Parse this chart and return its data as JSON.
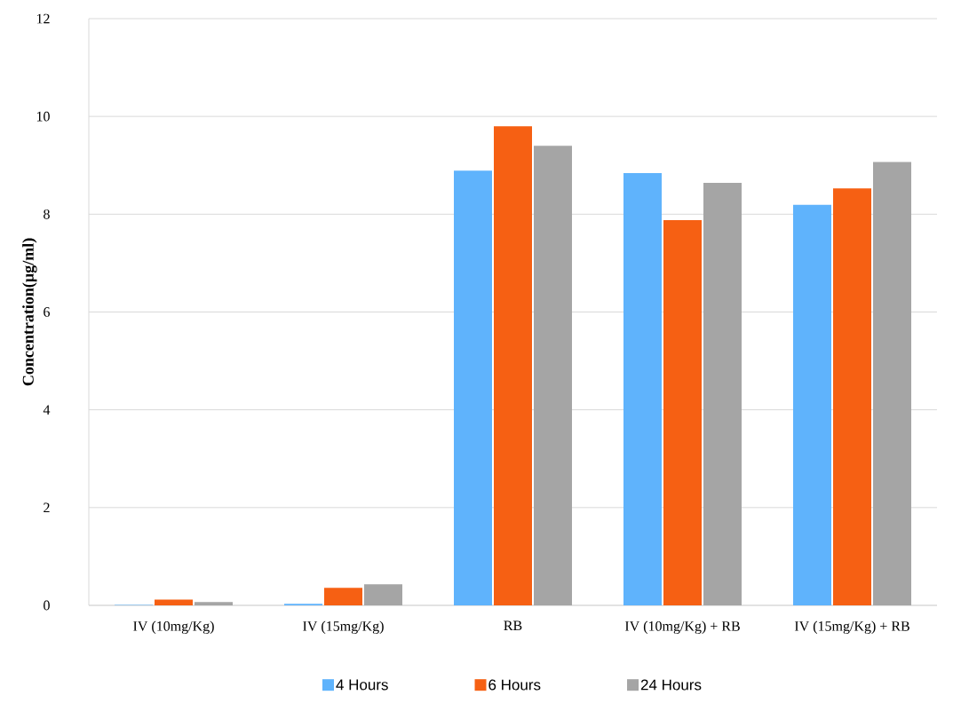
{
  "chart_data": {
    "type": "bar",
    "ylabel": "Concentration(µg/ml)",
    "categories": [
      "IV (10mg/Kg)",
      "IV (15mg/Kg)",
      "RB",
      "IV (10mg/Kg) + RB",
      "IV (15mg/Kg) + RB"
    ],
    "series": [
      {
        "name": "4 Hours",
        "color": "#5fb3fc",
        "values": [
          0.01,
          0.03,
          8.89,
          8.84,
          8.19
        ]
      },
      {
        "name": "6 Hours",
        "color": "#f66013",
        "values": [
          0.12,
          0.36,
          9.8,
          7.88,
          8.53
        ]
      },
      {
        "name": "24 Hours",
        "color": "#a5a5a5",
        "values": [
          0.07,
          0.43,
          9.4,
          8.64,
          9.07
        ]
      }
    ],
    "ylim": [
      0,
      12
    ],
    "yticks": [
      0,
      2,
      4,
      6,
      8,
      10,
      12
    ],
    "grid": "y",
    "legend": "bottom"
  }
}
